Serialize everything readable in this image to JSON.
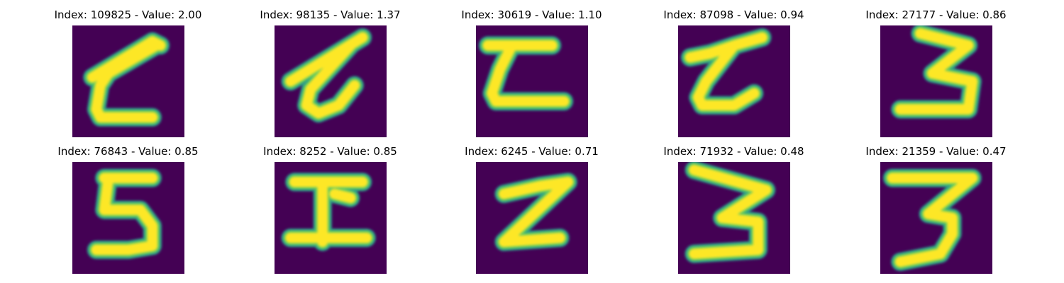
{
  "colors": {
    "background": "#440154",
    "mid": "#2a9a8a",
    "edge": "#5ec962",
    "core": "#fde725"
  },
  "images": [
    {
      "title": "Index: 109825 - Value: 2.00",
      "glyph": "zeta-loop"
    },
    {
      "title": "Index: 98135 - Value: 1.37",
      "glyph": "zeta-slanted"
    },
    {
      "title": "Index: 30619 - Value: 1.10",
      "glyph": "zeta-flat"
    },
    {
      "title": "Index: 87098 - Value: 0.94",
      "glyph": "zeta-curl"
    },
    {
      "title": "Index: 27177 - Value: 0.86",
      "glyph": "three-angular"
    },
    {
      "title": "Index: 76843 - Value: 0.85",
      "glyph": "five"
    },
    {
      "title": "Index: 8252 - Value: 0.85",
      "glyph": "pi-like"
    },
    {
      "title": "Index: 6245 - Value: 0.71",
      "glyph": "z"
    },
    {
      "title": "Index: 71932 - Value: 0.48",
      "glyph": "three-wide"
    },
    {
      "title": "Index: 21359 - Value: 0.47",
      "glyph": "three-flat-top"
    }
  ]
}
